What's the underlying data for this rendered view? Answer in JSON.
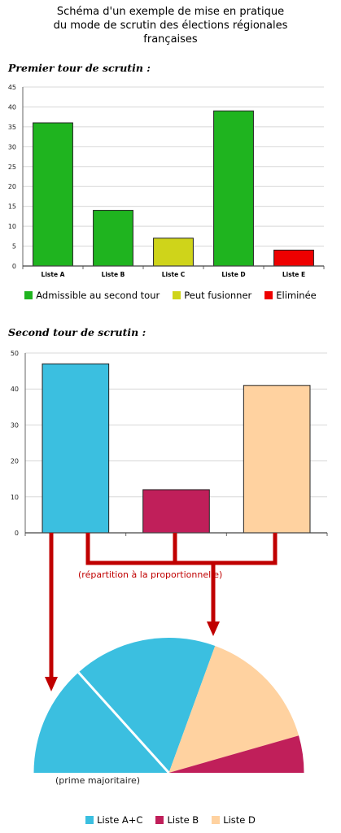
{
  "title_lines": [
    "Schéma d'un exemple de mise en pratique",
    "du mode de scrutin des élections régionales",
    "françaises"
  ],
  "colors": {
    "admissible": "#1fb41f",
    "fusion": "#cfd41a",
    "eliminee": "#ee0000",
    "liste_ac": "#3bbfe0",
    "liste_b": "#c01f5a",
    "liste_d": "#ffd2a0",
    "arrows": "#c00000"
  },
  "annotations": {
    "proportional": "(répartition à la proportionnelle)",
    "prime": "(prime majoritaire)"
  },
  "chart_data": [
    {
      "type": "bar",
      "title": "Premier tour de scrutin :",
      "categories": [
        "Liste A",
        "Liste B",
        "Liste C",
        "Liste D",
        "Liste E"
      ],
      "values": [
        36,
        14,
        7,
        39,
        4
      ],
      "status": [
        "admissible",
        "admissible",
        "fusion",
        "admissible",
        "eliminee"
      ],
      "ylim": [
        0,
        45
      ],
      "yticks": [
        0,
        5,
        10,
        15,
        20,
        25,
        30,
        35,
        40,
        45
      ],
      "grid": true,
      "legend": [
        {
          "label": "Admissible au second tour",
          "color": "#1fb41f"
        },
        {
          "label": "Peut fusionner",
          "color": "#cfd41a"
        },
        {
          "label": "Eliminée",
          "color": "#ee0000"
        }
      ]
    },
    {
      "type": "bar",
      "title": "Second tour de scrutin :",
      "categories": [
        "",
        "",
        ""
      ],
      "values": [
        47,
        12,
        41
      ],
      "colors": [
        "#3bbfe0",
        "#c01f5a",
        "#ffd2a0"
      ],
      "ylim": [
        0,
        50
      ],
      "yticks": [
        0,
        10,
        20,
        30,
        40,
        50
      ],
      "grid": true
    },
    {
      "type": "pie",
      "shape": "half-circle",
      "slices": [
        {
          "name": "Liste A+C",
          "value": 48,
          "color": "#3bbfe0",
          "part": "prime"
        },
        {
          "name": "Liste A+C",
          "value": 62,
          "color": "#3bbfe0",
          "part": "proportional"
        },
        {
          "name": "Liste D",
          "value": 54,
          "color": "#ffd2a0",
          "part": "proportional"
        },
        {
          "name": "Liste B",
          "value": 16,
          "color": "#c01f5a",
          "part": "proportional"
        }
      ],
      "legend": [
        {
          "label": "Liste A+C",
          "color": "#3bbfe0"
        },
        {
          "label": "Liste B",
          "color": "#c01f5a"
        },
        {
          "label": "Liste D",
          "color": "#ffd2a0"
        }
      ]
    }
  ]
}
